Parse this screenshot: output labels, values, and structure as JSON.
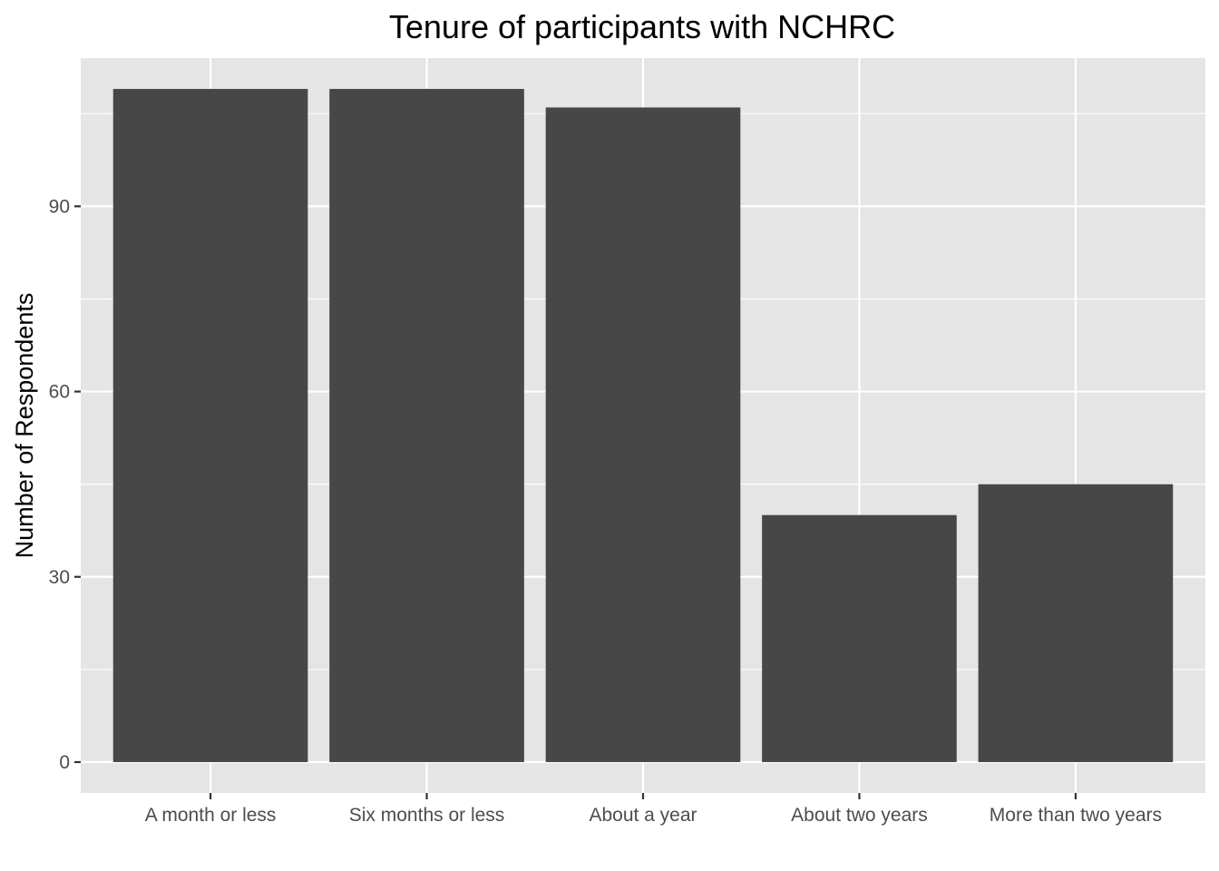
{
  "chart_data": {
    "type": "bar",
    "title": "Tenure of participants with NCHRC",
    "xlabel": "",
    "ylabel": "Number of Respondents",
    "categories": [
      "A month or less",
      "Six months or less",
      "About a year",
      "About two years",
      "More than two years"
    ],
    "values": [
      109,
      109,
      106,
      40,
      45
    ],
    "ylim": [
      -5,
      114
    ],
    "yticks": [
      0,
      30,
      60,
      90
    ],
    "ytick_labels": [
      "0",
      "30",
      "60",
      "90"
    ],
    "grid": true,
    "legend": "none",
    "colors": {
      "bar": "#474747",
      "panel": "#e5e5e5",
      "grid": "#ffffff",
      "tick": "#333333",
      "tick_label": "#4d4d4d"
    }
  }
}
